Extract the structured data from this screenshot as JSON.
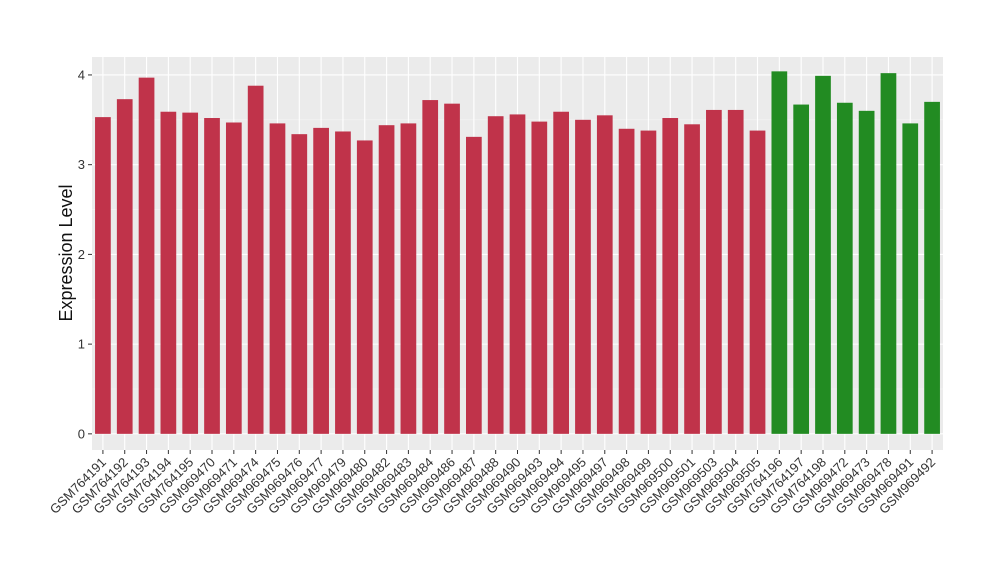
{
  "chart_data": {
    "type": "bar",
    "title": "",
    "xlabel": "",
    "ylabel": "Expression Level",
    "ylim": [
      -0.18,
      4.2
    ],
    "yticks": [
      0,
      1,
      2,
      3,
      4
    ],
    "grid": true,
    "legend": "none",
    "colors": {
      "group_a": "#C0334A",
      "group_b": "#228B22",
      "panel_bg": "#EBEBEB",
      "grid_major": "#FFFFFF",
      "grid_minor": "#F5F5F5"
    },
    "categories": [
      "GSM764191",
      "GSM764192",
      "GSM764193",
      "GSM764194",
      "GSM764195",
      "GSM969470",
      "GSM969471",
      "GSM969474",
      "GSM969475",
      "GSM969476",
      "GSM969477",
      "GSM969479",
      "GSM969480",
      "GSM969482",
      "GSM969483",
      "GSM969484",
      "GSM969486",
      "GSM969487",
      "GSM969488",
      "GSM969490",
      "GSM969493",
      "GSM969494",
      "GSM969495",
      "GSM969497",
      "GSM969498",
      "GSM969499",
      "GSM969500",
      "GSM969501",
      "GSM969503",
      "GSM969504",
      "GSM969505",
      "GSM764196",
      "GSM764197",
      "GSM764198",
      "GSM969472",
      "GSM969473",
      "GSM969478",
      "GSM969491",
      "GSM969492"
    ],
    "values": [
      3.53,
      3.73,
      3.97,
      3.59,
      3.58,
      3.52,
      3.47,
      3.88,
      3.46,
      3.34,
      3.41,
      3.37,
      3.27,
      3.44,
      3.46,
      3.72,
      3.68,
      3.31,
      3.54,
      3.56,
      3.48,
      3.59,
      3.5,
      3.55,
      3.4,
      3.38,
      3.52,
      3.45,
      3.61,
      3.61,
      3.38,
      4.04,
      3.67,
      3.99,
      3.69,
      3.6,
      4.02,
      3.46,
      3.7
    ],
    "groups": [
      "a",
      "a",
      "a",
      "a",
      "a",
      "a",
      "a",
      "a",
      "a",
      "a",
      "a",
      "a",
      "a",
      "a",
      "a",
      "a",
      "a",
      "a",
      "a",
      "a",
      "a",
      "a",
      "a",
      "a",
      "a",
      "a",
      "a",
      "a",
      "a",
      "a",
      "a",
      "b",
      "b",
      "b",
      "b",
      "b",
      "b",
      "b",
      "b"
    ]
  }
}
